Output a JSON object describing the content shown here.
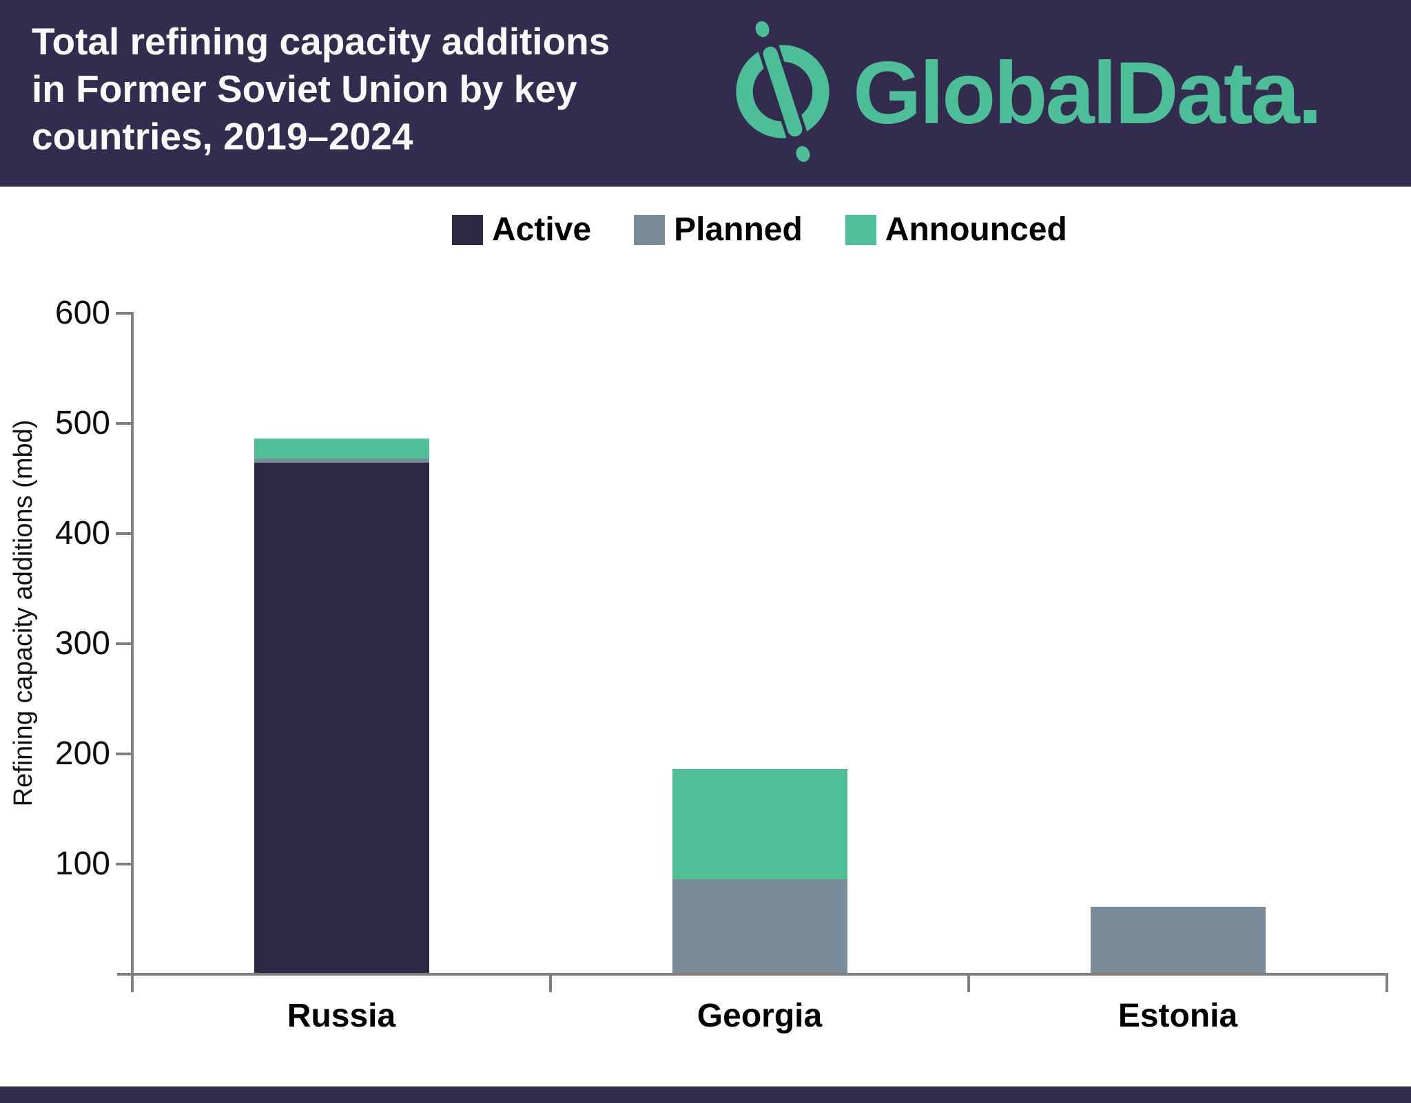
{
  "header": {
    "title_lines": [
      "Total refining capacity additions",
      "in Former Soviet Union by key",
      "countries, 2019–2024"
    ],
    "brand": "GlobalData."
  },
  "colors": {
    "header_background": "#332c4e",
    "brand_green": "#4cbf98",
    "active": "#2e2a43",
    "planned": "#7a8b99",
    "announced": "#4fbf97",
    "axis": "#7f7f7f"
  },
  "chart_data": {
    "type": "bar",
    "stacked": true,
    "categories": [
      "Russia",
      "Georgia",
      "Estonia"
    ],
    "series": [
      {
        "name": "Active",
        "color": "#2e2a43",
        "values": [
          463,
          0,
          0
        ]
      },
      {
        "name": "Planned",
        "color": "#7a8b99",
        "values": [
          4,
          85,
          60
        ]
      },
      {
        "name": "Announced",
        "color": "#4fbf97",
        "values": [
          18,
          100,
          0
        ]
      }
    ],
    "totals": [
      485,
      185,
      60
    ],
    "title": "Total refining capacity additions in Former Soviet Union by key countries, 2019–2024",
    "xlabel": "",
    "ylabel": "Refining capacity additions (mbd)",
    "yticks": [
      100,
      200,
      300,
      400,
      500,
      600
    ],
    "ylim": [
      0,
      600
    ],
    "grid": false,
    "legend_position": "top",
    "legend_entries": [
      "Active",
      "Planned",
      "Announced"
    ]
  }
}
